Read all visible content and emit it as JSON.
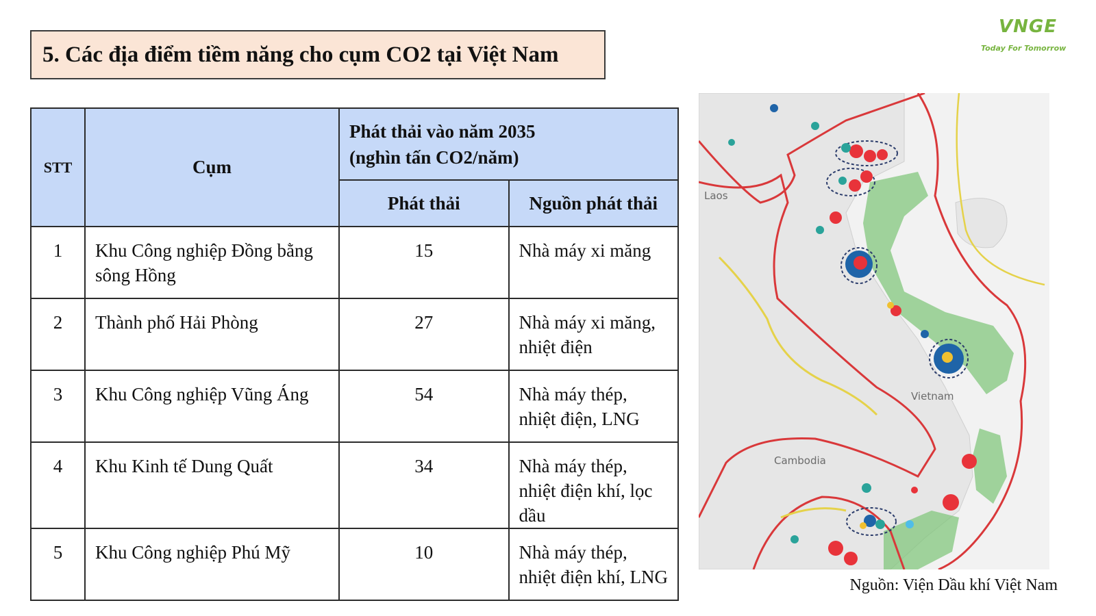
{
  "title": "5. Các địa điểm tiềm năng cho cụm CO2 tại Việt Nam",
  "logo": {
    "mark": "VNGE",
    "tagline": "Today For Tomorrow",
    "color": "#77b43f"
  },
  "table": {
    "headers": {
      "stt": "STT",
      "cum": "Cụm",
      "group_line1": "Phát thải vào năm 2035",
      "group_line2": "(nghìn tấn CO2/năm)",
      "phat_thai": "Phát thải",
      "nguon": "Nguồn phát thải"
    },
    "rows": [
      {
        "stt": "1",
        "cum": "Khu Công nghiệp Đồng bằng sông Hồng",
        "phat_thai": "15",
        "nguon": "Nhà máy xi măng"
      },
      {
        "stt": "2",
        "cum": "Thành phố Hải Phòng",
        "phat_thai": "27",
        "nguon": "Nhà máy xi măng, nhiệt điện"
      },
      {
        "stt": "3",
        "cum": "Khu Công nghiệp Vũng Áng",
        "phat_thai": "54",
        "nguon": "Nhà máy thép, nhiệt điện, LNG"
      },
      {
        "stt": "4",
        "cum": "Khu Kinh tế Dung Quất",
        "phat_thai": "34",
        "nguon": "Nhà máy thép, nhiệt điện khí, lọc dầu"
      },
      {
        "stt": "5",
        "cum": "Khu Công nghiệp Phú Mỹ",
        "phat_thai": "10",
        "nguon": "Nhà máy thép, nhiệt điện khí, LNG"
      }
    ],
    "header_color": "#c6d9f8"
  },
  "map": {
    "labels": {
      "laos": "Laos",
      "vietnam": "Vietnam",
      "cambodia": "Cambodia"
    },
    "colors": {
      "boundary": "#d9383a",
      "offshore": "#7cc576",
      "land": "#e8e8e8",
      "sea": "#f4f4f4"
    }
  },
  "source": "Nguồn: Viện Dầu khí Việt Nam"
}
